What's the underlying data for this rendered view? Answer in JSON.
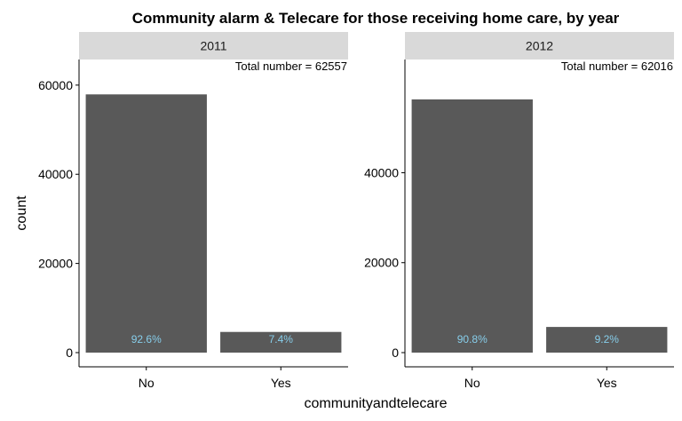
{
  "chart_data": {
    "type": "bar",
    "title": "Community alarm & Telecare for those receiving home care, by year",
    "xlabel": "communityandtelecare",
    "ylabel": "count",
    "categories": [
      "No",
      "Yes"
    ],
    "panels": [
      {
        "strip": "2011",
        "values": [
          57920,
          4637
        ],
        "labels": [
          "92.6%",
          "7.4%"
        ],
        "annotation": "Total number = 62557",
        "ylim": [
          0,
          62557
        ],
        "yticks": [
          0,
          20000,
          40000,
          60000
        ],
        "ytick_labels": [
          "0",
          "20000",
          "40000",
          "60000"
        ]
      },
      {
        "strip": "2012",
        "values": [
          56310,
          5706
        ],
        "labels": [
          "90.8%",
          "9.2%"
        ],
        "annotation": "Total number = 62016",
        "ylim": [
          0,
          62016
        ],
        "yticks": [
          0,
          20000,
          40000
        ],
        "ytick_labels": [
          "0",
          "20000",
          "40000"
        ]
      }
    ],
    "grid": false,
    "colors": {
      "bar": "#595959",
      "label": "#87ceeb",
      "strip": "#d9d9d9"
    }
  }
}
